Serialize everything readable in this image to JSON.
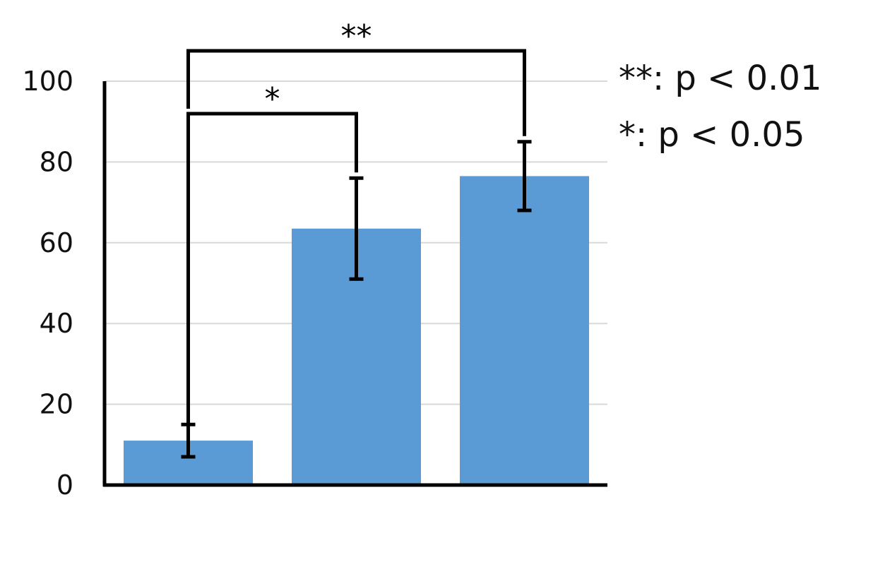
{
  "chart_data": {
    "type": "bar",
    "categories": [
      "",
      "",
      ""
    ],
    "values": [
      11,
      63.5,
      76.5
    ],
    "error": [
      4,
      12.5,
      8.5
    ],
    "ylim": [
      0,
      100
    ],
    "yticks": [
      0,
      20,
      40,
      60,
      80,
      100
    ],
    "grid": true,
    "bar_color": "#5b9bd5",
    "significance": [
      {
        "from": 0,
        "to": 1,
        "label": "*"
      },
      {
        "from": 0,
        "to": 2,
        "label": "**"
      }
    ],
    "legend": {
      "placement": "top-right",
      "items": [
        "**: p < 0.01",
        "*: p < 0.05"
      ]
    }
  }
}
